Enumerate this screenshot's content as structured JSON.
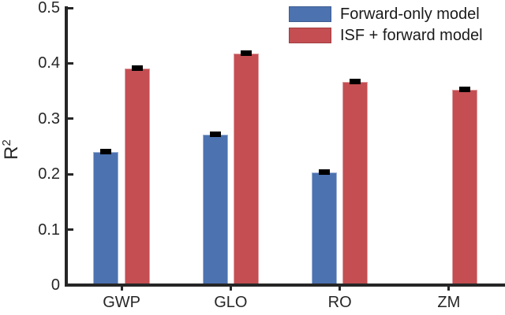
{
  "figure": {
    "background": "#ffffff",
    "axis_color": "#262626",
    "text_color": "#262626",
    "error_bar_color": "#000000"
  },
  "chart_data": {
    "type": "bar",
    "title": "",
    "xlabel": "",
    "ylabel": "R^2",
    "ylabel_base": "R",
    "ylabel_sup": "2",
    "categories": [
      "GWP",
      "GLO",
      "RO",
      "ZM"
    ],
    "series": [
      {
        "name": "Forward-only model",
        "color": "#4C72B0",
        "values": [
          0.24,
          0.272,
          0.203,
          0
        ],
        "errors": [
          0.006,
          0.005,
          0.004,
          0
        ]
      },
      {
        "name": "ISF + forward model",
        "color": "#C44E52",
        "values": [
          0.39,
          0.418,
          0.366,
          0.352
        ],
        "errors": [
          0.004,
          0.005,
          0.005,
          0.004
        ]
      }
    ],
    "ylim": [
      0,
      0.5
    ],
    "yticks": [
      0,
      0.1,
      0.2,
      0.3,
      0.4,
      0.5
    ],
    "ytick_labels": [
      "0",
      "0.1",
      "0.2",
      "0.3",
      "0.4",
      "0.5"
    ],
    "grid": false,
    "legend_position": "top-right"
  }
}
